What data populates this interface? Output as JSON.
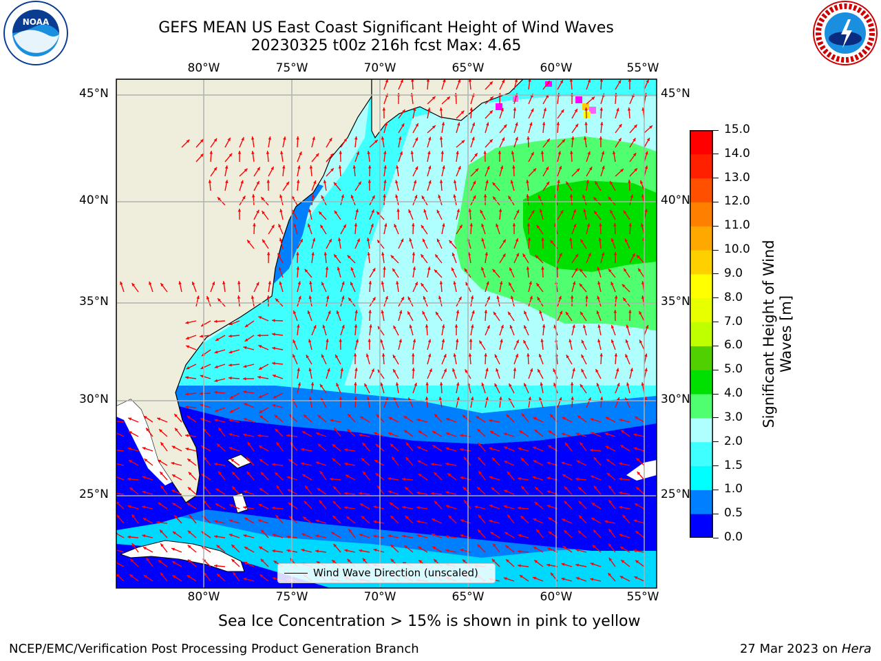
{
  "header": {
    "title_line1": "GEFS MEAN US East Coast Significant Height of Wind Waves",
    "title_line2": "20230325 t00z 216h fcst   Max: 4.65",
    "left_logo": "NOAA",
    "right_logo_text": "NATIONAL WEATHER SERVICE"
  },
  "map": {
    "lon_labels": [
      "80°W",
      "75°W",
      "70°W",
      "65°W",
      "60°W",
      "55°W"
    ],
    "lat_labels": [
      "45°N",
      "40°N",
      "35°N",
      "30°N",
      "25°N"
    ],
    "legend_label": "Wind Wave Direction (unscaled)",
    "colors": {
      "land": "#efeedd",
      "ocean_base": "#b0fdfd",
      "arrow": "#ff0000",
      "grid": "#b0b0b0"
    }
  },
  "colorbar": {
    "label_line1": "Significant Height of Wind",
    "label_line2": "Waves [m]",
    "ticks": [
      "0.0",
      "0.5",
      "1.0",
      "1.5",
      "2.0",
      "3.0",
      "4.0",
      "5.0",
      "6.0",
      "7.0",
      "8.0",
      "9.0",
      "10.0",
      "11.0",
      "12.0",
      "13.0",
      "14.0",
      "15.0"
    ],
    "colors": [
      "#0000ff",
      "#0080ff",
      "#00ffff",
      "#40ffff",
      "#b0ffff",
      "#50ff70",
      "#00e000",
      "#50d000",
      "#c0ff00",
      "#e8ff00",
      "#ffff00",
      "#ffd000",
      "#ffa800",
      "#ff8000",
      "#ff5000",
      "#ff2000",
      "#ff0000"
    ]
  },
  "notes": {
    "ice": "Sea Ice Concentration > 15% is shown in pink to yellow"
  },
  "footer": {
    "left": "NCEP/EMC/Verification Post Processing Product Generation Branch",
    "right_date": "27 Mar 2023 on ",
    "right_host": "Hera"
  }
}
